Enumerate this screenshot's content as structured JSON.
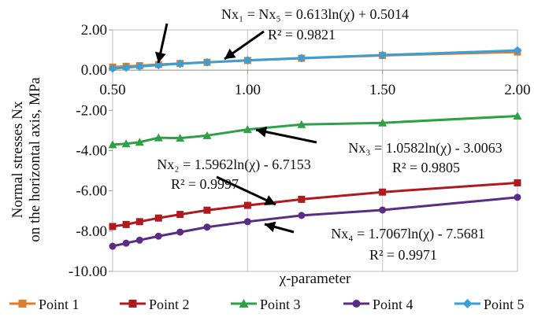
{
  "chart_data": {
    "type": "line",
    "xlabel": "χ-parameter",
    "ylabel_lines": [
      "Normal stresses Nx",
      "on the horizontal axis, MPa"
    ],
    "xlim": [
      0.5,
      2.0
    ],
    "ylim": [
      -10.0,
      2.0
    ],
    "x_ticks": [
      "0.50",
      "1.00",
      "1.50",
      "2.00"
    ],
    "y_ticks": [
      "2.00",
      "0.00",
      "-2.00",
      "-4.00",
      "-6.00",
      "-8.00",
      "-10.00"
    ],
    "grid": "vertical",
    "legend_position": "bottom",
    "series": [
      {
        "name": "Point 1",
        "color": "#E07B2A",
        "marker": "square",
        "x": [
          0.5,
          0.55,
          0.6,
          0.67,
          0.75,
          0.85,
          1.0,
          1.2,
          1.5,
          2.0
        ],
        "y": [
          0.15,
          0.19,
          0.22,
          0.28,
          0.33,
          0.39,
          0.48,
          0.59,
          0.73,
          0.9
        ]
      },
      {
        "name": "Point 2",
        "color": "#B0191E",
        "marker": "square",
        "x": [
          0.5,
          0.55,
          0.6,
          0.67,
          0.75,
          0.85,
          1.0,
          1.2,
          1.5,
          2.0
        ],
        "y": [
          -7.77,
          -7.67,
          -7.53,
          -7.35,
          -7.17,
          -6.96,
          -6.72,
          -6.42,
          -6.06,
          -5.6
        ]
      },
      {
        "name": "Point 3",
        "color": "#2EA046",
        "marker": "triangle",
        "x": [
          0.5,
          0.55,
          0.6,
          0.67,
          0.75,
          0.85,
          1.0,
          1.2,
          1.5,
          2.0
        ],
        "y": [
          -3.7,
          -3.66,
          -3.58,
          -3.36,
          -3.38,
          -3.25,
          -2.95,
          -2.7,
          -2.62,
          -2.28
        ]
      },
      {
        "name": "Point 4",
        "color": "#5A2C86",
        "marker": "circle",
        "x": [
          0.5,
          0.55,
          0.6,
          0.67,
          0.75,
          0.85,
          1.0,
          1.2,
          1.5,
          2.0
        ],
        "y": [
          -8.75,
          -8.6,
          -8.45,
          -8.25,
          -8.05,
          -7.8,
          -7.53,
          -7.22,
          -6.95,
          -6.32
        ]
      },
      {
        "name": "Point 5",
        "color": "#3A9FD8",
        "marker": "diamond",
        "x": [
          0.5,
          0.55,
          0.6,
          0.67,
          0.75,
          0.85,
          1.0,
          1.2,
          1.5,
          2.0
        ],
        "y": [
          0.08,
          0.13,
          0.18,
          0.25,
          0.32,
          0.39,
          0.49,
          0.6,
          0.75,
          0.98
        ]
      }
    ],
    "annotations": [
      {
        "id": "nx1",
        "eq": "Nx₁ = Nx₅ = 0.613ln(χ) + 0.5014",
        "r2": "R² = 0.9821"
      },
      {
        "id": "nx3",
        "eq": "Nx₃ = 1.0582ln(χ) - 3.0063",
        "r2": "R² = 0.9805"
      },
      {
        "id": "nx2",
        "eq": "Nx₂ = 1.5962ln(χ) - 6.7153",
        "r2": "R² = 0.9997"
      },
      {
        "id": "nx4",
        "eq": "Nx₄ = 1.7067ln(χ) - 7.5681",
        "r2": "R² = 0.9971"
      }
    ]
  }
}
